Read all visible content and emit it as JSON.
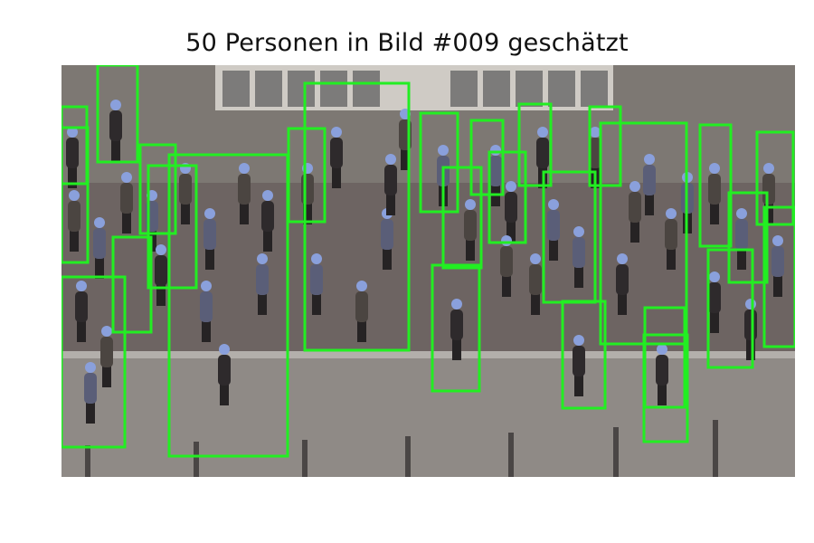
{
  "figure": {
    "title": "50 Personen in Bild #009 geschätzt"
  },
  "colors": {
    "detection_box": "#22ee22",
    "street": "#6e6664",
    "pavement": "#8f8a86",
    "sidewalk_top": "#7b7672",
    "shop_front": "#c9c6c1",
    "person_tint": "#8aa0dc"
  },
  "icons": {
    "photo": "street-photo"
  }
}
